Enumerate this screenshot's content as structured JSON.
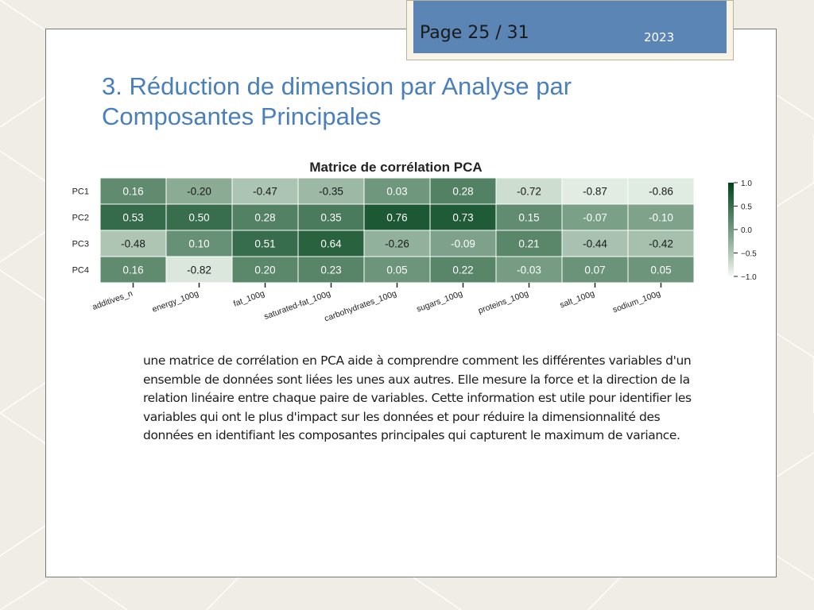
{
  "header": {
    "page_label": "Page 25 / 31",
    "year": "2023"
  },
  "slide": {
    "title": "3. Réduction de dimension par Analyse par Composantes Principales",
    "body": "une matrice de corrélation en PCA aide à comprendre comment les différentes variables d'un ensemble de données sont liées les unes aux autres. Elle mesure la force et la direction de la relation linéaire entre chaque paire de variables. Cette information est utile pour identifier les variables qui ont le plus d'impact sur les données et pour réduire la dimensionnalité des données en identifiant les composantes principales qui capturent le maximum de variance."
  },
  "chart_data": {
    "type": "heatmap",
    "title": "Matrice de corrélation PCA",
    "rows": [
      "PC1",
      "PC2",
      "PC3",
      "PC4"
    ],
    "columns": [
      "additives_n",
      "energy_100g",
      "fat_100g",
      "saturated-fat_100g",
      "carbohydrates_100g",
      "sugars_100g",
      "proteins_100g",
      "salt_100g",
      "sodium_100g"
    ],
    "values": [
      [
        0.16,
        -0.2,
        -0.47,
        -0.35,
        0.03,
        0.28,
        -0.72,
        -0.87,
        -0.86
      ],
      [
        0.53,
        0.5,
        0.28,
        0.35,
        0.76,
        0.73,
        0.15,
        -0.07,
        -0.1
      ],
      [
        -0.48,
        0.1,
        0.51,
        0.64,
        -0.26,
        -0.09,
        0.21,
        -0.44,
        -0.42
      ],
      [
        0.16,
        -0.82,
        0.2,
        0.23,
        0.05,
        0.22,
        -0.03,
        0.07,
        0.05
      ]
    ],
    "colormap": [
      "#f7fcf5",
      "#00441b"
    ],
    "colorbar": {
      "vmin": -1.0,
      "vmax": 1.0,
      "ticks": [
        "1.0",
        "0.5",
        "0.0",
        "−0.5",
        "−1.0"
      ]
    }
  }
}
